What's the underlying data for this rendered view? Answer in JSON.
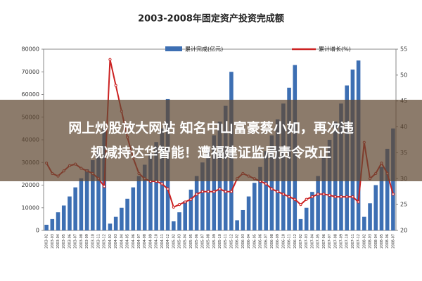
{
  "chart_data": {
    "type": "bar",
    "title": "2003-2008年固定资产投资完成额",
    "categories": [
      "2003-02",
      "2003-03",
      "2003-04",
      "2003-05",
      "2003-06",
      "2003-07",
      "2003-08",
      "2003-09",
      "2003-10",
      "2003-11",
      "2003-12",
      "2004-02",
      "2004-03",
      "2004-04",
      "2004-05",
      "2004-06",
      "2004-07",
      "2004-08",
      "2004-09",
      "2004-10",
      "2004-11",
      "2004-12",
      "2005-02",
      "2005-03",
      "2005-04",
      "2005-05",
      "2005-06",
      "2005-07",
      "2005-08",
      "2005-09",
      "2005-10",
      "2005-11",
      "2005-12",
      "2006-02",
      "2006-03",
      "2006-04",
      "2006-05",
      "2006-06",
      "2006-07",
      "2006-08",
      "2006-09",
      "2006-10",
      "2006-11",
      "2006-12",
      "2007-02",
      "2007-03",
      "2007-04",
      "2007-05",
      "2007-06",
      "2007-07",
      "2007-08",
      "2007-09",
      "2007-10",
      "2007-11",
      "2007-12",
      "2008-02",
      "2008-03",
      "2008-04",
      "2008-05",
      "2008-06",
      "2008-07"
    ],
    "series": [
      {
        "name": "累计完成(亿元)",
        "type": "bar",
        "color": "#3d6fb3",
        "values": [
          2500,
          5000,
          8000,
          11000,
          15000,
          19000,
          23000,
          27000,
          31000,
          36000,
          45000,
          3000,
          6000,
          10000,
          14000,
          19000,
          24000,
          29000,
          34000,
          39000,
          45000,
          58000,
          4000,
          8000,
          13000,
          18000,
          24000,
          30000,
          36000,
          42000,
          48000,
          55000,
          70000,
          4500,
          9000,
          15000,
          21000,
          28000,
          35000,
          42000,
          49000,
          56000,
          63000,
          73000,
          5000,
          10000,
          17000,
          24000,
          32000,
          40000,
          48000,
          56000,
          64000,
          71000,
          75000,
          6000,
          12000,
          20000,
          28000,
          36000,
          45000
        ]
      },
      {
        "name": "累计增长(%)",
        "type": "line",
        "axis": "y2",
        "color": "#cc2222",
        "values": [
          33,
          31,
          30.5,
          31.5,
          32.5,
          32.8,
          32,
          31.5,
          31,
          30,
          28.5,
          53,
          48,
          43,
          38,
          34,
          31,
          30,
          29.5,
          29.5,
          29,
          28,
          24.5,
          25,
          25.5,
          26,
          27,
          27.5,
          27.5,
          27.5,
          28,
          27.5,
          27.5,
          30,
          31,
          30.5,
          30,
          29.5,
          29,
          28,
          27.5,
          27,
          26.5,
          26,
          25,
          26,
          26.5,
          27,
          27,
          26.8,
          26.5,
          26.5,
          26.5,
          26.5,
          25.5,
          37,
          30,
          31,
          33,
          31,
          27
        ]
      }
    ],
    "ylim": [
      0,
      80000
    ],
    "yticks": [
      0,
      10000,
      20000,
      30000,
      40000,
      50000,
      60000,
      70000,
      80000
    ],
    "y2lim": [
      20,
      55
    ],
    "y2ticks": [
      20,
      25,
      30,
      35,
      40,
      45,
      50,
      55
    ]
  },
  "overlay": {
    "lines": [
      "网上炒股放大网站 知名中山富豪蔡小如，再次违",
      "规减持达华智能！遭福建证监局责令改正"
    ]
  }
}
